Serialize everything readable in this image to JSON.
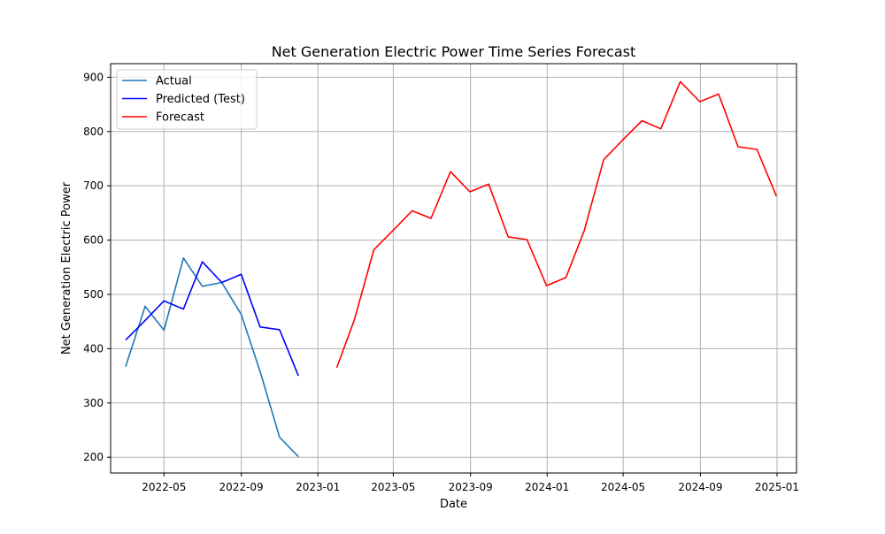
{
  "chart_data": {
    "type": "line",
    "title": "Net Generation Electric Power Time Series Forecast",
    "xlabel": "Date",
    "ylabel": "Net Generation Electric Power",
    "xlim": [
      "2022-02-05",
      "2025-02-01"
    ],
    "ylim": [
      171,
      925
    ],
    "grid": true,
    "legend_position": "top-left",
    "x_ticks": [
      "2022-05",
      "2022-09",
      "2023-01",
      "2023-05",
      "2023-09",
      "2024-01",
      "2024-05",
      "2024-09",
      "2025-01"
    ],
    "y_ticks": [
      200,
      300,
      400,
      500,
      600,
      700,
      800,
      900
    ],
    "series": [
      {
        "name": "Actual",
        "color": "#1f77b4",
        "x": [
          "2022-03-01",
          "2022-04-01",
          "2022-05-01",
          "2022-06-01",
          "2022-07-01",
          "2022-08-01",
          "2022-09-01",
          "2022-10-01",
          "2022-11-01",
          "2022-12-01"
        ],
        "values": [
          367,
          478,
          434,
          567,
          515,
          522,
          463,
          358,
          237,
          201
        ]
      },
      {
        "name": "Predicted (Test)",
        "color": "#0000ff",
        "x": [
          "2022-03-01",
          "2022-04-01",
          "2022-05-01",
          "2022-06-01",
          "2022-07-01",
          "2022-08-01",
          "2022-09-01",
          "2022-10-01",
          "2022-11-01",
          "2022-12-01"
        ],
        "values": [
          416,
          452,
          488,
          473,
          560,
          522,
          537,
          440,
          435,
          350
        ]
      },
      {
        "name": "Forecast",
        "color": "#ff0000",
        "x": [
          "2023-01-31",
          "2023-02-28",
          "2023-03-31",
          "2023-04-30",
          "2023-05-31",
          "2023-06-30",
          "2023-07-31",
          "2023-08-31",
          "2023-09-30",
          "2023-10-31",
          "2023-11-30",
          "2023-12-31",
          "2024-01-31",
          "2024-02-29",
          "2024-03-31",
          "2024-04-30",
          "2024-05-31",
          "2024-06-30",
          "2024-07-31",
          "2024-08-31",
          "2024-09-30",
          "2024-10-31",
          "2024-11-30",
          "2024-12-31"
        ],
        "values": [
          365,
          453,
          582,
          617,
          654,
          640,
          726,
          689,
          703,
          606,
          601,
          516,
          531,
          617,
          748,
          784,
          820,
          805,
          892,
          855,
          869,
          772,
          767,
          681
        ]
      }
    ]
  }
}
